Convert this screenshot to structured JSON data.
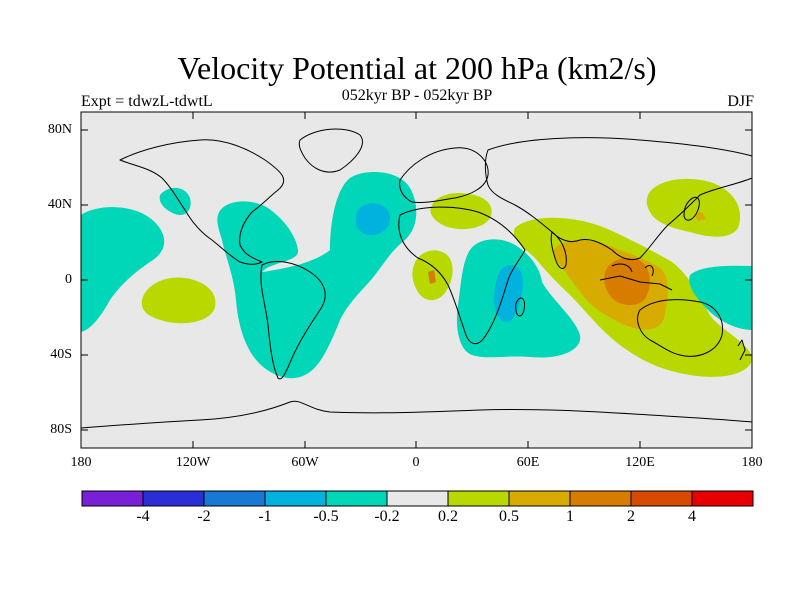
{
  "title": "Velocity Potential at 200 hPa (km2/s)",
  "subtitle": "052kyr BP - 052kyr BP",
  "left_label": "Expt = tdwzL-tdwtL",
  "right_label": "DJF",
  "lat_ticks": [
    "80N",
    "40N",
    "0",
    "40S",
    "80S"
  ],
  "lon_ticks": [
    "180",
    "120W",
    "60W",
    "0",
    "60E",
    "120E",
    "180"
  ],
  "colorbar": {
    "colors": [
      "#7a1fd8",
      "#2a2ed6",
      "#1878d6",
      "#00b2dd",
      "#00d6b8",
      "#e8e8e8",
      "#b8d800",
      "#d8ab00",
      "#d87c00",
      "#d84a00",
      "#e80000"
    ],
    "labels": [
      "-4",
      "-2",
      "-1",
      "-0.5",
      "-0.2",
      "0.2",
      "0.5",
      "1",
      "2",
      "4"
    ]
  },
  "colors": {
    "land_outline": "#000000",
    "background_field": "#e8e8e8",
    "teal": "#00d6b8",
    "cyan": "#00b2dd",
    "yellow_green": "#b8d800",
    "orange_yellow": "#d8ab00",
    "orange": "#d87c00"
  }
}
